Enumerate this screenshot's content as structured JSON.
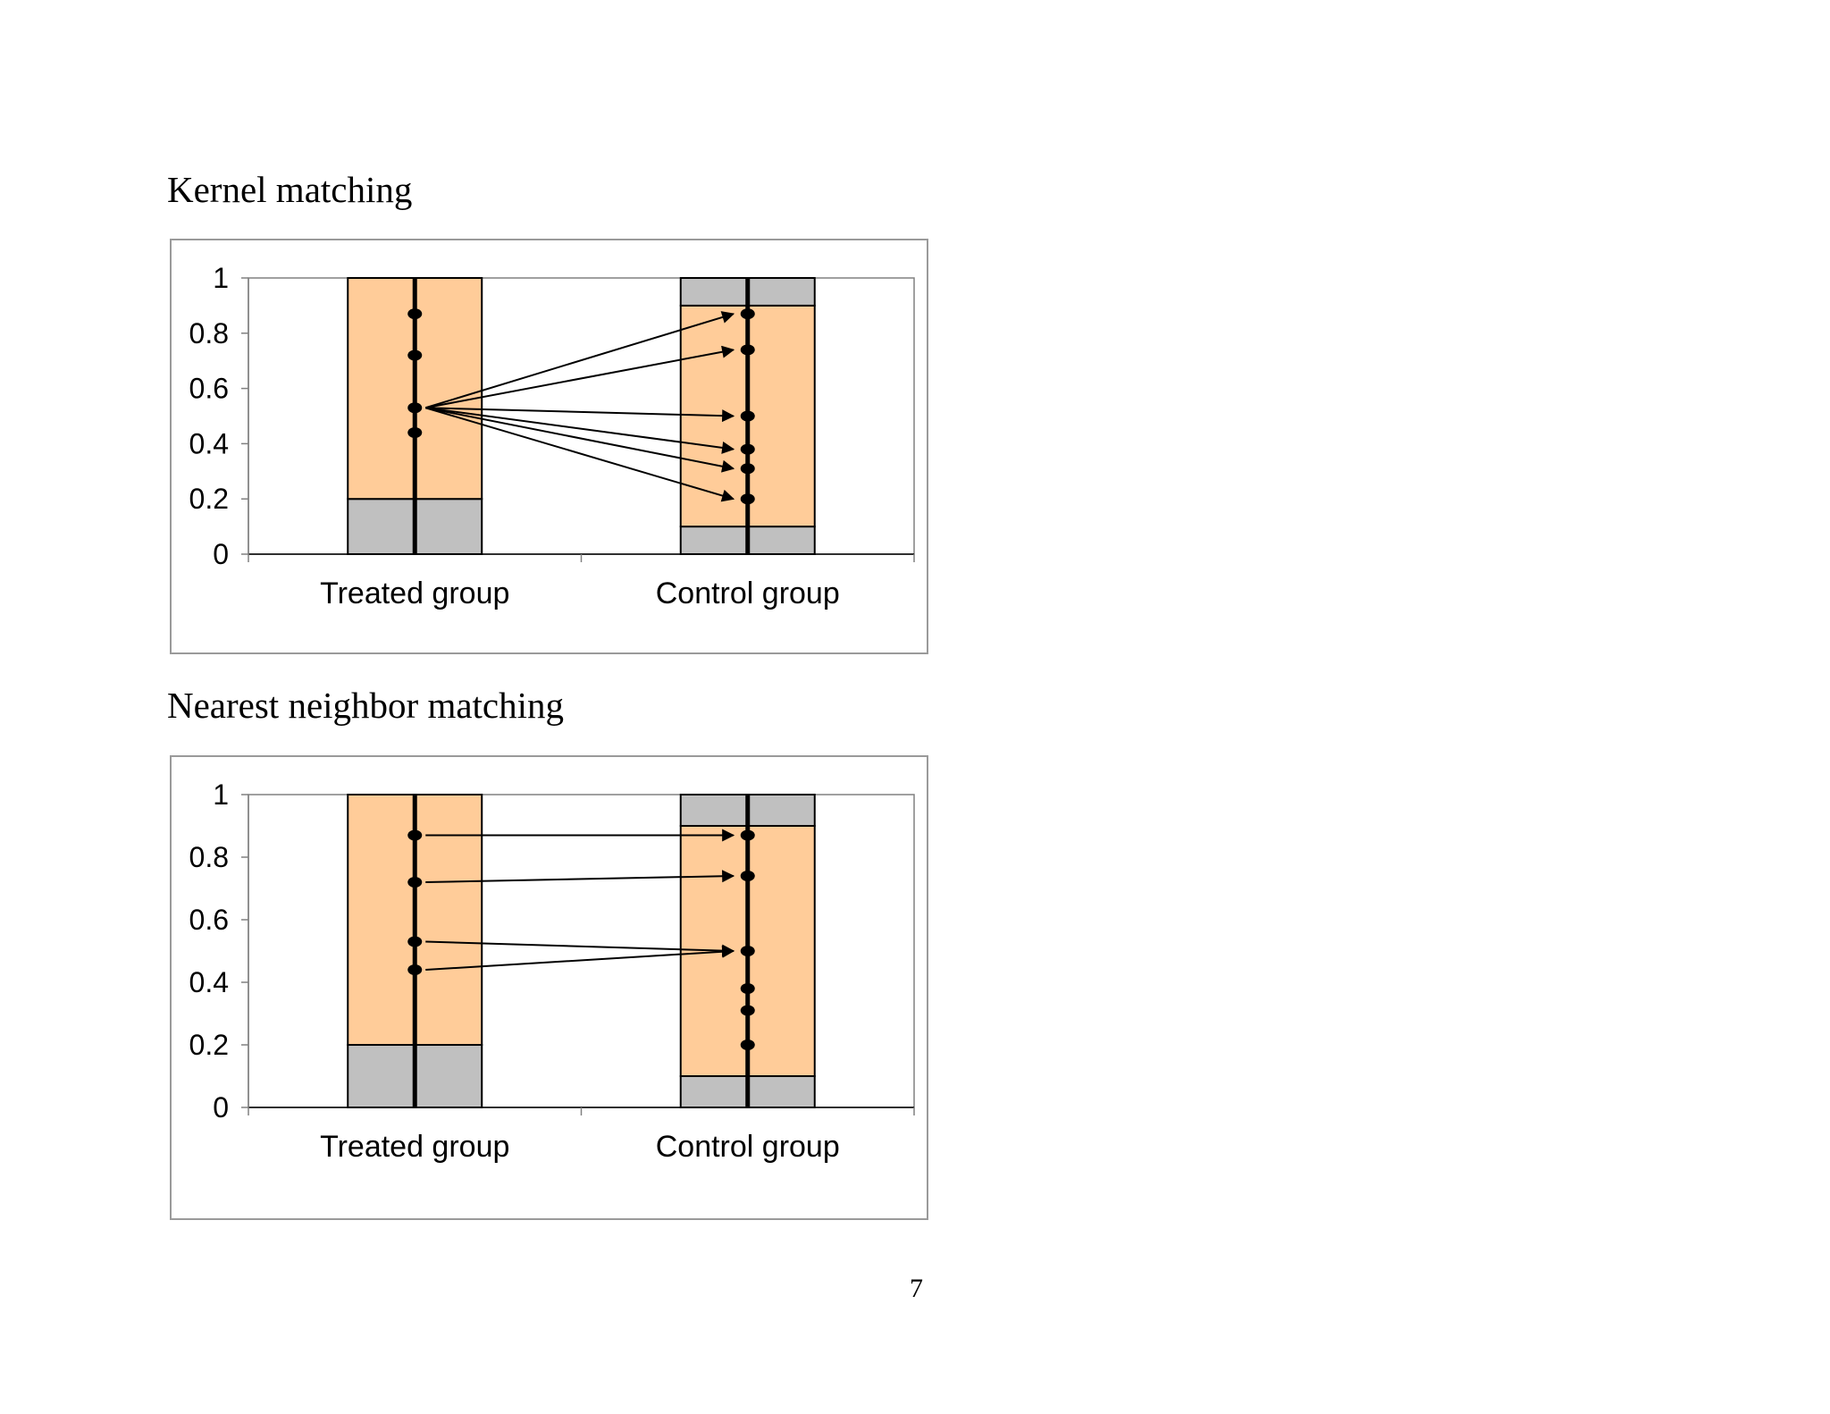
{
  "page": {
    "number": "7"
  },
  "colors": {
    "matched": "#FFCC99",
    "unmatched": "#C0C0C0",
    "line": "#000000"
  },
  "chart_data": [
    {
      "type": "bar",
      "title": "Kernel matching",
      "categories": [
        "Treated group",
        "Control group"
      ],
      "ylim": [
        0,
        1
      ],
      "yticks": [
        "0",
        "0.2",
        "0.4",
        "0.6",
        "0.8",
        "1"
      ],
      "grid": false,
      "series": [
        {
          "values": [
            0.2,
            0.1
          ]
        },
        {
          "values": [
            0.8,
            0.8
          ]
        },
        {
          "values": [
            0,
            0.1
          ]
        }
      ],
      "points": {
        "treated": [
          0.87,
          0.72,
          0.53,
          0.44
        ],
        "control": [
          0.87,
          0.74,
          0.5,
          0.38,
          0.31,
          0.2
        ]
      },
      "matches": [
        {
          "from": 0.53,
          "to": 0.87
        },
        {
          "from": 0.53,
          "to": 0.74
        },
        {
          "from": 0.53,
          "to": 0.5
        },
        {
          "from": 0.53,
          "to": 0.38
        },
        {
          "from": 0.53,
          "to": 0.31
        },
        {
          "from": 0.53,
          "to": 0.2
        }
      ]
    },
    {
      "type": "bar",
      "title": "Nearest neighbor matching",
      "categories": [
        "Treated group",
        "Control group"
      ],
      "ylim": [
        0,
        1
      ],
      "yticks": [
        "0",
        "0.2",
        "0.4",
        "0.6",
        "0.8",
        "1"
      ],
      "grid": false,
      "series": [
        {
          "values": [
            0.2,
            0.1
          ]
        },
        {
          "values": [
            0.8,
            0.8
          ]
        },
        {
          "values": [
            0,
            0.1
          ]
        }
      ],
      "points": {
        "treated": [
          0.87,
          0.72,
          0.53,
          0.44
        ],
        "control": [
          0.87,
          0.74,
          0.5,
          0.38,
          0.31,
          0.2
        ]
      },
      "matches": [
        {
          "from": 0.87,
          "to": 0.87
        },
        {
          "from": 0.72,
          "to": 0.74
        },
        {
          "from": 0.53,
          "to": 0.5
        },
        {
          "from": 0.44,
          "to": 0.5
        }
      ]
    }
  ]
}
